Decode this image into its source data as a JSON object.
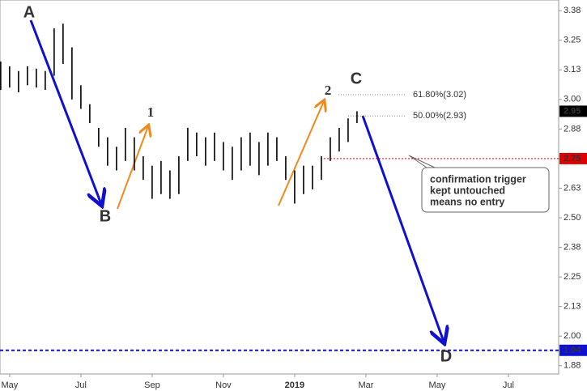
{
  "chart_data": {
    "type": "ohlc",
    "x": [
      -0.25,
      0,
      0.25,
      0.5,
      0.75,
      1,
      1.25,
      1.5,
      1.75,
      2,
      2.25,
      2.5,
      2.75,
      3,
      3.25,
      3.5,
      3.75,
      4,
      4.25,
      4.5,
      4.75,
      5,
      5.25,
      5.5,
      5.75,
      6,
      6.25,
      6.5,
      6.75,
      7,
      7.25,
      7.5,
      7.75,
      8,
      8.25,
      8.5,
      8.75,
      9,
      9.25,
      9.5,
      9.75
    ],
    "low": [
      3.04,
      3.05,
      3.03,
      3.06,
      3.05,
      3.04,
      3.1,
      3.15,
      3.0,
      2.96,
      2.9,
      2.8,
      2.72,
      2.7,
      2.74,
      2.7,
      2.66,
      2.58,
      2.6,
      2.58,
      2.6,
      2.74,
      2.76,
      2.72,
      2.74,
      2.7,
      2.66,
      2.7,
      2.72,
      2.68,
      2.72,
      2.74,
      2.66,
      2.56,
      2.6,
      2.62,
      2.66,
      2.74,
      2.78,
      2.82,
      2.9
    ],
    "high": [
      3.16,
      3.14,
      3.12,
      3.14,
      3.13,
      3.12,
      3.3,
      3.32,
      3.22,
      3.06,
      2.98,
      2.88,
      2.84,
      2.8,
      2.88,
      2.84,
      2.76,
      2.72,
      2.74,
      2.7,
      2.76,
      2.88,
      2.86,
      2.84,
      2.86,
      2.82,
      2.8,
      2.84,
      2.86,
      2.82,
      2.86,
      2.84,
      2.76,
      2.7,
      2.72,
      2.72,
      2.76,
      2.84,
      2.88,
      2.92,
      2.95
    ],
    "color": "#000000",
    "xlim": [
      -0.27,
      15.41
    ],
    "xticks": [
      {
        "value": 0,
        "label": "May"
      },
      {
        "value": 2,
        "label": "Jul"
      },
      {
        "value": 4,
        "label": "Sep"
      },
      {
        "value": 6,
        "label": "Nov"
      },
      {
        "value": 8,
        "label": "2019"
      },
      {
        "value": 10,
        "label": "Mar"
      },
      {
        "value": 12,
        "label": "May"
      },
      {
        "value": 14,
        "label": "Jul"
      }
    ],
    "ylim": [
      1.84,
      3.42
    ],
    "yticks": [
      {
        "value": 3.375,
        "label": "3.38"
      },
      3.25,
      {
        "value": 3.125,
        "label": "3.13"
      },
      {
        "value": 3,
        "label": "3.00"
      },
      {
        "value": 2.875,
        "label": "2.88"
      },
      2.75,
      {
        "value": 2.625,
        "label": "2.63"
      },
      {
        "value": 2.5,
        "label": "2.50"
      },
      {
        "value": 2.375,
        "label": "2.38"
      },
      2.25,
      {
        "value": 2.125,
        "label": "2.13"
      },
      {
        "value": 2,
        "label": "2.00"
      },
      {
        "value": 1.875,
        "label": "1.88"
      }
    ],
    "grid": false,
    "levels": [
      {
        "value": 3.02,
        "label": "61.80%(3.02)"
      },
      {
        "value": 2.93,
        "label": "50.00%(2.93)"
      }
    ],
    "price_tags": [
      {
        "value": 2.95,
        "color": "#000000"
      },
      {
        "value": 2.75,
        "color": "#e00000"
      },
      {
        "value": 1.94,
        "color": "#1010d0"
      }
    ],
    "annotations": [
      "A",
      "B",
      "C",
      "D",
      "1",
      "2"
    ],
    "callout": [
      "confirmation trigger",
      "kept untouched",
      "means no entry"
    ]
  }
}
